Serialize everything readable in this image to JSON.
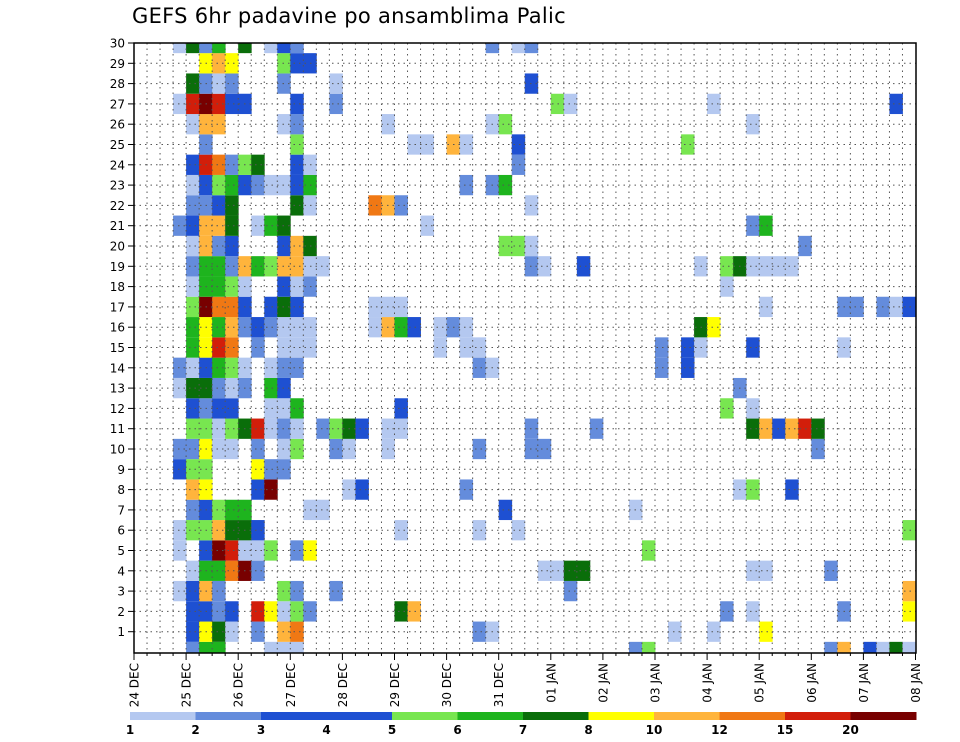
{
  "title": "GEFS 6hr padavine po ansamblima Palic",
  "chart_data": {
    "type": "heatmap",
    "title": "GEFS 6hr padavine po ansamblima Palic",
    "y_ticks": [
      "1",
      "2",
      "3",
      "4",
      "5",
      "6",
      "7",
      "8",
      "9",
      "10",
      "11",
      "12",
      "13",
      "14",
      "15",
      "16",
      "17",
      "18",
      "19",
      "20",
      "21",
      "22",
      "23",
      "24",
      "25",
      "26",
      "27",
      "28",
      "29",
      "30"
    ],
    "x_ticks": [
      "24 DEC",
      "25 DEC",
      "26 DEC",
      "27 DEC",
      "28 DEC",
      "29 DEC",
      "30 DEC",
      "31 DEC",
      "01 JAN",
      "02 JAN",
      "03 JAN",
      "04 JAN",
      "05 JAN",
      "06 JAN",
      "07 JAN",
      "08 JAN"
    ],
    "x_steps_per_day": 4,
    "total_steps": 60,
    "colorbar": {
      "labels": [
        "1",
        "2",
        "3",
        "4",
        "5",
        "6",
        "7",
        "8",
        "10",
        "12",
        "15",
        "20"
      ],
      "colors": [
        "#b4c8f0",
        "#648cdc",
        "#1e50d2",
        "#1e50d2",
        "#78e650",
        "#1eb41e",
        "#0a6e0a",
        "#ffff00",
        "#ffb43c",
        "#f07814",
        "#d21e0a",
        "#780000"
      ]
    },
    "levels": {
      "1": "#b4c8f0",
      "2": "#648cdc",
      "3": "#1e50d2",
      "4": "#78e650",
      "5": "#1eb41e",
      "6": "#0a6e0a",
      "7": "#ffff00",
      "8": "#ffb43c",
      "9": "#f07814",
      "10": "#d21e0a",
      "11": "#780000"
    },
    "rows": {
      "30": [
        [
          4,
          1
        ],
        [
          5,
          6
        ],
        [
          6,
          2
        ],
        [
          7,
          5
        ],
        [
          9,
          6
        ],
        [
          11,
          1
        ],
        [
          12,
          3
        ],
        [
          13,
          2
        ],
        [
          28,
          2
        ],
        [
          30,
          1
        ],
        [
          31,
          2
        ]
      ],
      "29": [
        [
          6,
          7
        ],
        [
          7,
          8
        ],
        [
          8,
          7
        ],
        [
          12,
          4
        ],
        [
          13,
          3
        ],
        [
          14,
          3
        ]
      ],
      "28": [
        [
          5,
          6
        ],
        [
          6,
          2
        ],
        [
          7,
          1
        ],
        [
          8,
          2
        ],
        [
          12,
          2
        ],
        [
          16,
          1
        ],
        [
          31,
          3
        ]
      ],
      "27": [
        [
          4,
          1
        ],
        [
          5,
          10
        ],
        [
          6,
          11
        ],
        [
          7,
          10
        ],
        [
          8,
          3
        ],
        [
          9,
          3
        ],
        [
          13,
          3
        ],
        [
          16,
          2
        ],
        [
          33,
          4
        ],
        [
          34,
          1
        ],
        [
          45,
          1
        ],
        [
          59,
          3
        ]
      ],
      "26": [
        [
          5,
          1
        ],
        [
          6,
          8
        ],
        [
          7,
          8
        ],
        [
          12,
          1
        ],
        [
          13,
          2
        ],
        [
          20,
          1
        ],
        [
          28,
          1
        ],
        [
          29,
          4
        ],
        [
          48,
          1
        ]
      ],
      "25": [
        [
          6,
          2
        ],
        [
          13,
          4
        ],
        [
          22,
          1
        ],
        [
          23,
          1
        ],
        [
          25,
          8
        ],
        [
          26,
          1
        ],
        [
          30,
          3
        ],
        [
          43,
          4
        ]
      ],
      "24": [
        [
          5,
          3
        ],
        [
          6,
          10
        ],
        [
          7,
          9
        ],
        [
          8,
          2
        ],
        [
          9,
          4
        ],
        [
          10,
          6
        ],
        [
          13,
          3
        ],
        [
          14,
          1
        ],
        [
          30,
          2
        ]
      ],
      "23": [
        [
          5,
          1
        ],
        [
          6,
          3
        ],
        [
          7,
          4
        ],
        [
          8,
          5
        ],
        [
          9,
          3
        ],
        [
          10,
          2
        ],
        [
          11,
          1
        ],
        [
          12,
          1
        ],
        [
          13,
          3
        ],
        [
          14,
          5
        ],
        [
          26,
          2
        ],
        [
          28,
          2
        ],
        [
          29,
          5
        ]
      ],
      "22": [
        [
          5,
          2
        ],
        [
          6,
          2
        ],
        [
          7,
          3
        ],
        [
          8,
          6
        ],
        [
          13,
          6
        ],
        [
          14,
          1
        ],
        [
          19,
          9
        ],
        [
          20,
          8
        ],
        [
          21,
          2
        ],
        [
          31,
          1
        ]
      ],
      "21": [
        [
          4,
          2
        ],
        [
          5,
          3
        ],
        [
          6,
          8
        ],
        [
          7,
          8
        ],
        [
          8,
          6
        ],
        [
          10,
          1
        ],
        [
          11,
          5
        ],
        [
          12,
          6
        ],
        [
          23,
          1
        ],
        [
          48,
          2
        ],
        [
          49,
          5
        ]
      ],
      "20": [
        [
          5,
          1
        ],
        [
          6,
          8
        ],
        [
          7,
          2
        ],
        [
          8,
          3
        ],
        [
          12,
          3
        ],
        [
          13,
          8
        ],
        [
          14,
          6
        ],
        [
          29,
          4
        ],
        [
          30,
          4
        ],
        [
          31,
          1
        ],
        [
          52,
          2
        ]
      ],
      "19": [
        [
          5,
          2
        ],
        [
          6,
          5
        ],
        [
          7,
          5
        ],
        [
          8,
          2
        ],
        [
          9,
          8
        ],
        [
          10,
          5
        ],
        [
          11,
          4
        ],
        [
          12,
          8
        ],
        [
          13,
          8
        ],
        [
          14,
          1
        ],
        [
          15,
          1
        ],
        [
          31,
          2
        ],
        [
          32,
          1
        ],
        [
          35,
          3
        ],
        [
          44,
          1
        ],
        [
          46,
          4
        ],
        [
          47,
          6
        ],
        [
          48,
          1
        ],
        [
          49,
          1
        ],
        [
          50,
          1
        ],
        [
          51,
          1
        ]
      ],
      "18": [
        [
          5,
          1
        ],
        [
          6,
          5
        ],
        [
          7,
          5
        ],
        [
          8,
          4
        ],
        [
          9,
          1
        ],
        [
          12,
          3
        ],
        [
          13,
          1
        ],
        [
          14,
          2
        ],
        [
          46,
          1
        ]
      ],
      "17": [
        [
          5,
          4
        ],
        [
          6,
          11
        ],
        [
          7,
          9
        ],
        [
          8,
          9
        ],
        [
          9,
          3
        ],
        [
          11,
          3
        ],
        [
          12,
          6
        ],
        [
          13,
          3
        ],
        [
          19,
          1
        ],
        [
          20,
          1
        ],
        [
          21,
          1
        ],
        [
          49,
          1
        ],
        [
          55,
          2
        ],
        [
          56,
          2
        ],
        [
          58,
          2
        ],
        [
          59,
          1
        ],
        [
          60,
          3
        ]
      ],
      "16": [
        [
          5,
          5
        ],
        [
          6,
          7
        ],
        [
          7,
          5
        ],
        [
          8,
          8
        ],
        [
          9,
          2
        ],
        [
          10,
          3
        ],
        [
          11,
          2
        ],
        [
          12,
          1
        ],
        [
          13,
          1
        ],
        [
          14,
          1
        ],
        [
          19,
          1
        ],
        [
          20,
          8
        ],
        [
          21,
          5
        ],
        [
          22,
          3
        ],
        [
          24,
          1
        ],
        [
          25,
          2
        ],
        [
          26,
          1
        ],
        [
          44,
          6
        ],
        [
          45,
          7
        ]
      ],
      "15": [
        [
          5,
          5
        ],
        [
          6,
          7
        ],
        [
          7,
          10
        ],
        [
          8,
          9
        ],
        [
          10,
          2
        ],
        [
          12,
          1
        ],
        [
          13,
          1
        ],
        [
          14,
          1
        ],
        [
          24,
          1
        ],
        [
          26,
          1
        ],
        [
          27,
          1
        ],
        [
          41,
          2
        ],
        [
          43,
          3
        ],
        [
          44,
          1
        ],
        [
          48,
          3
        ],
        [
          55,
          1
        ]
      ],
      "14": [
        [
          4,
          2
        ],
        [
          5,
          1
        ],
        [
          6,
          3
        ],
        [
          7,
          5
        ],
        [
          8,
          4
        ],
        [
          9,
          1
        ],
        [
          11,
          1
        ],
        [
          12,
          2
        ],
        [
          13,
          2
        ],
        [
          27,
          2
        ],
        [
          28,
          1
        ],
        [
          41,
          2
        ],
        [
          43,
          3
        ]
      ],
      "13": [
        [
          4,
          1
        ],
        [
          5,
          6
        ],
        [
          6,
          6
        ],
        [
          7,
          2
        ],
        [
          8,
          1
        ],
        [
          9,
          2
        ],
        [
          11,
          5
        ],
        [
          12,
          3
        ],
        [
          47,
          2
        ]
      ],
      "12": [
        [
          5,
          3
        ],
        [
          6,
          2
        ],
        [
          7,
          3
        ],
        [
          8,
          3
        ],
        [
          11,
          1
        ],
        [
          12,
          1
        ],
        [
          13,
          5
        ],
        [
          21,
          3
        ],
        [
          46,
          4
        ],
        [
          48,
          1
        ]
      ],
      "11": [
        [
          5,
          4
        ],
        [
          6,
          4
        ],
        [
          7,
          1
        ],
        [
          8,
          4
        ],
        [
          9,
          6
        ],
        [
          10,
          10
        ],
        [
          11,
          1
        ],
        [
          12,
          2
        ],
        [
          13,
          1
        ],
        [
          15,
          2
        ],
        [
          16,
          4
        ],
        [
          17,
          6
        ],
        [
          18,
          3
        ],
        [
          20,
          1
        ],
        [
          21,
          1
        ],
        [
          31,
          2
        ],
        [
          36,
          2
        ],
        [
          48,
          6
        ],
        [
          49,
          8
        ],
        [
          50,
          3
        ],
        [
          51,
          8
        ],
        [
          52,
          10
        ],
        [
          53,
          6
        ]
      ],
      "10": [
        [
          4,
          2
        ],
        [
          5,
          2
        ],
        [
          6,
          7
        ],
        [
          7,
          1
        ],
        [
          8,
          1
        ],
        [
          10,
          2
        ],
        [
          12,
          1
        ],
        [
          13,
          4
        ],
        [
          16,
          2
        ],
        [
          17,
          1
        ],
        [
          20,
          1
        ],
        [
          27,
          2
        ],
        [
          31,
          2
        ],
        [
          32,
          2
        ],
        [
          53,
          2
        ]
      ],
      "9": [
        [
          4,
          3
        ],
        [
          5,
          4
        ],
        [
          6,
          4
        ],
        [
          10,
          7
        ],
        [
          11,
          2
        ],
        [
          12,
          2
        ]
      ],
      "8": [
        [
          5,
          8
        ],
        [
          6,
          7
        ],
        [
          10,
          3
        ],
        [
          11,
          11
        ],
        [
          17,
          1
        ],
        [
          18,
          3
        ],
        [
          26,
          2
        ],
        [
          47,
          1
        ],
        [
          48,
          4
        ],
        [
          51,
          3
        ]
      ],
      "7": [
        [
          5,
          2
        ],
        [
          6,
          3
        ],
        [
          7,
          4
        ],
        [
          8,
          5
        ],
        [
          9,
          5
        ],
        [
          14,
          1
        ],
        [
          15,
          1
        ],
        [
          29,
          3
        ],
        [
          39,
          1
        ]
      ],
      "6": [
        [
          4,
          1
        ],
        [
          5,
          4
        ],
        [
          6,
          4
        ],
        [
          7,
          8
        ],
        [
          8,
          6
        ],
        [
          9,
          6
        ],
        [
          10,
          3
        ],
        [
          21,
          1
        ],
        [
          27,
          1
        ],
        [
          30,
          1
        ],
        [
          60,
          4
        ]
      ],
      "5": [
        [
          4,
          1
        ],
        [
          6,
          3
        ],
        [
          7,
          11
        ],
        [
          8,
          10
        ],
        [
          9,
          1
        ],
        [
          10,
          1
        ],
        [
          11,
          4
        ],
        [
          13,
          2
        ],
        [
          14,
          7
        ],
        [
          40,
          4
        ]
      ],
      "4": [
        [
          5,
          1
        ],
        [
          6,
          5
        ],
        [
          7,
          5
        ],
        [
          8,
          9
        ],
        [
          9,
          11
        ],
        [
          10,
          2
        ],
        [
          32,
          1
        ],
        [
          33,
          1
        ],
        [
          34,
          6
        ],
        [
          35,
          6
        ],
        [
          48,
          1
        ],
        [
          49,
          1
        ],
        [
          54,
          2
        ]
      ],
      "3": [
        [
          4,
          1
        ],
        [
          5,
          3
        ],
        [
          6,
          8
        ],
        [
          7,
          2
        ],
        [
          12,
          4
        ],
        [
          13,
          2
        ],
        [
          16,
          2
        ],
        [
          34,
          2
        ],
        [
          60,
          8
        ]
      ],
      "2": [
        [
          5,
          3
        ],
        [
          6,
          3
        ],
        [
          7,
          2
        ],
        [
          8,
          3
        ],
        [
          10,
          10
        ],
        [
          11,
          7
        ],
        [
          12,
          1
        ],
        [
          13,
          4
        ],
        [
          14,
          2
        ],
        [
          21,
          6
        ],
        [
          22,
          8
        ],
        [
          46,
          2
        ],
        [
          48,
          1
        ],
        [
          55,
          2
        ],
        [
          60,
          7
        ]
      ],
      "1": [
        [
          5,
          3
        ],
        [
          6,
          7
        ],
        [
          7,
          6
        ],
        [
          8,
          1
        ],
        [
          10,
          2
        ],
        [
          12,
          8
        ],
        [
          13,
          9
        ],
        [
          27,
          2
        ],
        [
          28,
          1
        ],
        [
          42,
          1
        ],
        [
          45,
          1
        ],
        [
          49,
          7
        ]
      ],
      "0": [
        [
          5,
          2
        ],
        [
          6,
          5
        ],
        [
          7,
          5
        ],
        [
          11,
          1
        ],
        [
          12,
          1
        ],
        [
          13,
          1
        ],
        [
          39,
          2
        ],
        [
          40,
          4
        ],
        [
          54,
          2
        ],
        [
          55,
          8
        ],
        [
          57,
          3
        ],
        [
          58,
          1
        ],
        [
          59,
          6
        ],
        [
          60,
          1
        ]
      ]
    }
  }
}
